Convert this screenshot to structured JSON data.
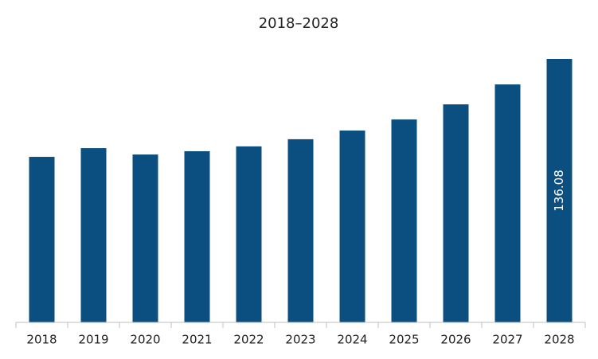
{
  "chart_data": {
    "type": "bar",
    "title": "2018–2028",
    "categories": [
      "2018",
      "2019",
      "2020",
      "2021",
      "2022",
      "2023",
      "2024",
      "2025",
      "2026",
      "2027",
      "2028"
    ],
    "values": [
      85.5,
      90.0,
      86.7,
      88.4,
      90.9,
      94.6,
      99.1,
      104.8,
      112.6,
      122.9,
      136.08
    ],
    "value_labels": [
      null,
      null,
      null,
      null,
      null,
      null,
      null,
      null,
      null,
      null,
      "136.08"
    ],
    "color": "#0b4f80"
  }
}
